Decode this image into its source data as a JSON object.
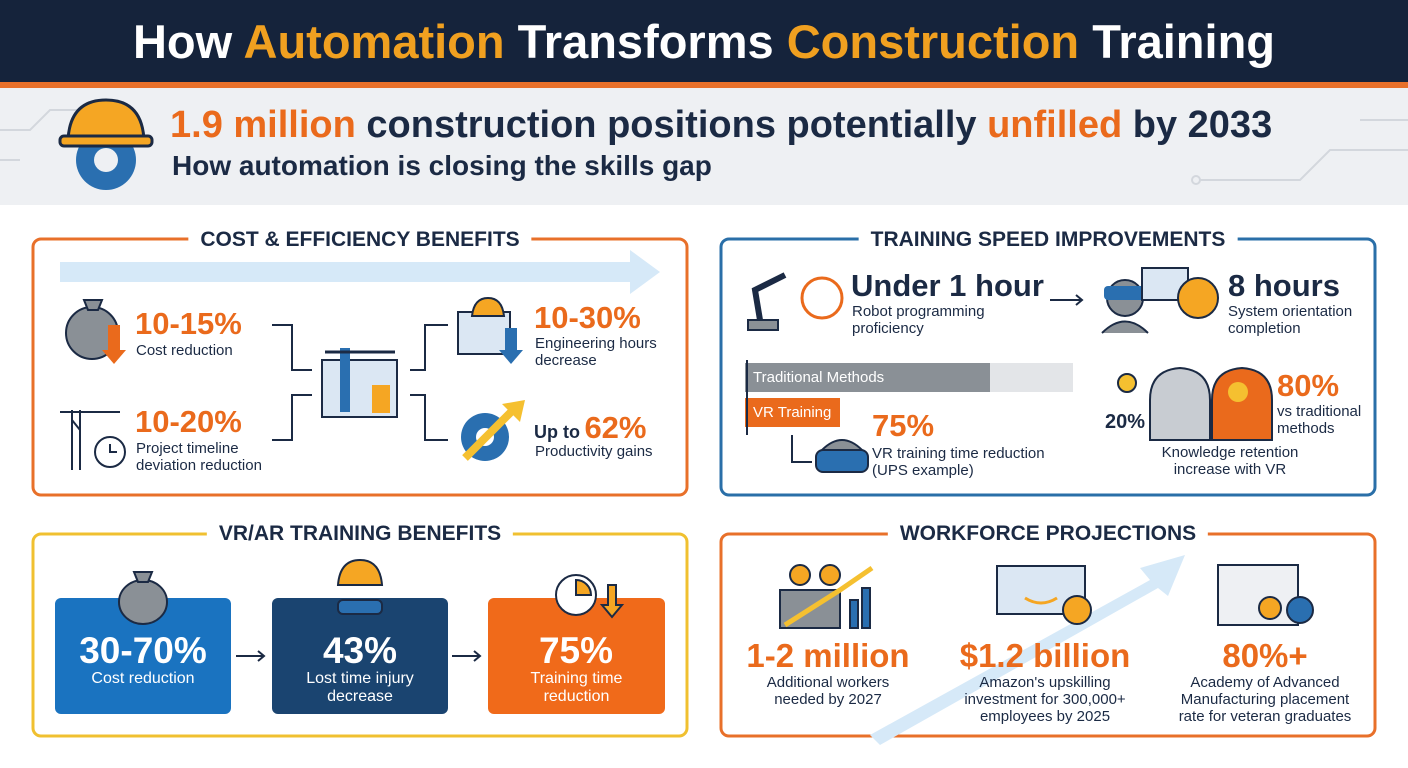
{
  "header": {
    "title_parts": [
      "How",
      "Automation",
      "Transforms",
      "Construction",
      "Training"
    ]
  },
  "banner": {
    "headline_parts": [
      "1.9 million",
      "construction positions potentially",
      "unfilled",
      "by 2033"
    ],
    "subtitle": "How automation is closing the skills gap"
  },
  "cost_efficiency": {
    "title": "COST & EFFICIENCY BENEFITS",
    "items": [
      {
        "value": "10-15%",
        "label": "Cost reduction"
      },
      {
        "value": "10-20%",
        "label": "Project timeline deviation reduction"
      },
      {
        "value": "10-30%",
        "label": "Engineering hours decrease"
      },
      {
        "prefix": "Up to",
        "value": "62%",
        "label": "Productivity gains"
      }
    ]
  },
  "training_speed": {
    "title": "TRAINING SPEED IMPROVEMENTS",
    "robot": {
      "value": "Under 1 hour",
      "label": "Robot programming proficiency"
    },
    "system": {
      "value": "8 hours",
      "label": "System orientation completion"
    },
    "bars": [
      "Traditional Methods",
      "VR Training"
    ],
    "vr_reduction": {
      "value": "75%",
      "label": "VR training time reduction (UPS example)"
    },
    "retention": {
      "low": "20%",
      "high": "80%",
      "comparison": "vs traditional methods",
      "label": "Knowledge retention increase with VR"
    }
  },
  "vr_ar": {
    "title": "VR/AR TRAINING BENEFITS",
    "cards": [
      {
        "value": "30-70%",
        "label": "Cost reduction"
      },
      {
        "value": "43%",
        "label": "Lost time injury decrease"
      },
      {
        "value": "75%",
        "label": "Training time reduction"
      }
    ]
  },
  "workforce": {
    "title": "WORKFORCE PROJECTIONS",
    "items": [
      {
        "value": "1-2 million",
        "label": "Additional workers needed by 2027"
      },
      {
        "value": "$1.2 billion",
        "label": "Amazon's upskilling investment for 300,000+ employees by 2025"
      },
      {
        "value": "80%+",
        "label": "Academy of Advanced Manufacturing placement rate for veteran graduates"
      }
    ]
  }
}
